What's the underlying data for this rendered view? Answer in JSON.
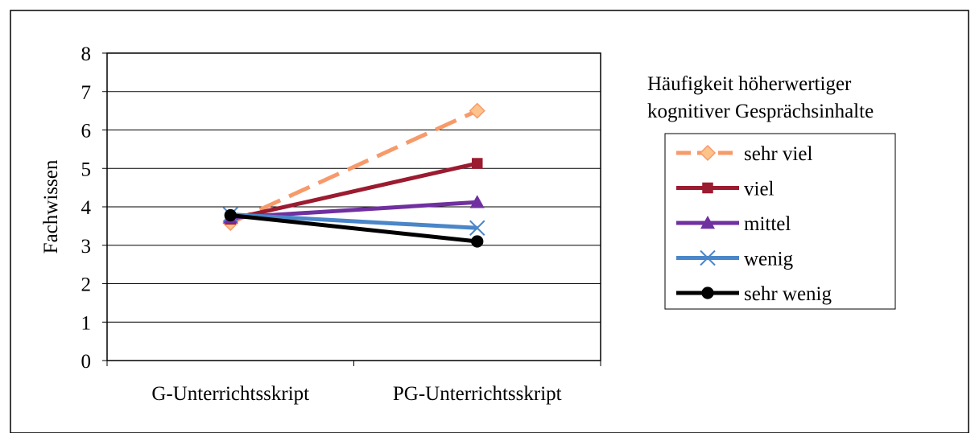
{
  "chart_data": {
    "type": "line",
    "categories": [
      "G-Unterrichtsskript",
      "PG-Unterrichtsskript"
    ],
    "ylabel": "Fachwissen",
    "ylim": [
      0,
      8
    ],
    "yticks": [
      0,
      1,
      2,
      3,
      4,
      5,
      6,
      7,
      8
    ],
    "grid": true,
    "legend_title": "Häufigkeit höherwertiger kognitiver Gesprächsinhalte",
    "legend_title_lines": [
      "Häufigkeit höherwertiger",
      "kognitiver Gesprächsinhalte"
    ],
    "legend_position": "right",
    "series": [
      {
        "name": "sehr viel",
        "values": [
          3.58,
          6.5
        ],
        "color": "#f79a6a",
        "marker": "diamond",
        "dashed": true
      },
      {
        "name": "viel",
        "values": [
          3.68,
          5.13
        ],
        "color": "#9b1b30",
        "marker": "square",
        "dashed": false
      },
      {
        "name": "mittel",
        "values": [
          3.72,
          4.12
        ],
        "color": "#7030a0",
        "marker": "triangle",
        "dashed": false
      },
      {
        "name": "wenig",
        "values": [
          3.8,
          3.45
        ],
        "color": "#4a86c8",
        "marker": "x",
        "dashed": false
      },
      {
        "name": "sehr wenig",
        "values": [
          3.78,
          3.1
        ],
        "color": "#000000",
        "marker": "circle",
        "dashed": false
      }
    ]
  }
}
